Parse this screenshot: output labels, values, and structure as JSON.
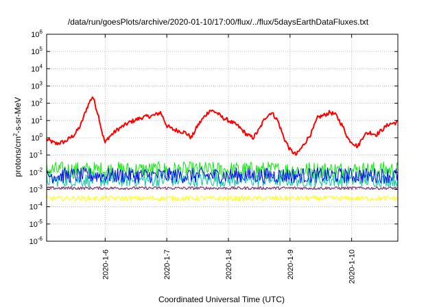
{
  "chart_data": {
    "type": "line",
    "title": "/data/run/goesPlots/archive/2020-01-10/17:00/flux/../flux/5daysEarthDataFluxes.txt",
    "xlabel": "Coordinated Universal Time (UTC)",
    "ylabel": {
      "prefix": "protons/cm",
      "sup": "2",
      "suffix": "-s-sr-MeV"
    },
    "y_scale": "log",
    "ylim_exponents": [
      -6,
      6
    ],
    "y_tick_exponents": [
      -6,
      -5,
      -4,
      -3,
      -2,
      -1,
      0,
      1,
      2,
      3,
      4,
      5,
      6
    ],
    "y_tick_base": "10",
    "xlim_days": [
      5.05,
      10.75
    ],
    "x_ticks": [
      {
        "label": "2020-1-6",
        "day": 6
      },
      {
        "label": "2020-1-7",
        "day": 7
      },
      {
        "label": "2020-1-8",
        "day": 8
      },
      {
        "label": "2020-1-9",
        "day": 9
      },
      {
        "label": "2020-1-10",
        "day": 10
      }
    ],
    "grid": true,
    "series": [
      {
        "color": "#ff0000",
        "lw": 2.0,
        "noise": 0.12,
        "points": [
          [
            5.05,
            0.8
          ],
          [
            5.2,
            0.45
          ],
          [
            5.35,
            0.6
          ],
          [
            5.5,
            1.5
          ],
          [
            5.6,
            5
          ],
          [
            5.7,
            50
          ],
          [
            5.76,
            150
          ],
          [
            5.8,
            250
          ],
          [
            5.85,
            60
          ],
          [
            5.9,
            15
          ],
          [
            5.95,
            2
          ],
          [
            6.0,
            0.5
          ],
          [
            6.05,
            1.0
          ],
          [
            6.2,
            3
          ],
          [
            6.4,
            8
          ],
          [
            6.6,
            15
          ],
          [
            6.8,
            20
          ],
          [
            6.9,
            30
          ],
          [
            7.0,
            5
          ],
          [
            7.1,
            3
          ],
          [
            7.2,
            2.5
          ],
          [
            7.3,
            2
          ],
          [
            7.4,
            1.0
          ],
          [
            7.5,
            5
          ],
          [
            7.6,
            15
          ],
          [
            7.7,
            40
          ],
          [
            7.8,
            30
          ],
          [
            7.9,
            15
          ],
          [
            8.0,
            10
          ],
          [
            8.15,
            5
          ],
          [
            8.3,
            1.5
          ],
          [
            8.4,
            1.0
          ],
          [
            8.5,
            3
          ],
          [
            8.6,
            15
          ],
          [
            8.7,
            30
          ],
          [
            8.8,
            10
          ],
          [
            8.9,
            1.0
          ],
          [
            9.0,
            0.2
          ],
          [
            9.1,
            0.1
          ],
          [
            9.2,
            0.3
          ],
          [
            9.35,
            2
          ],
          [
            9.45,
            15
          ],
          [
            9.55,
            20
          ],
          [
            9.65,
            30
          ],
          [
            9.75,
            20
          ],
          [
            9.85,
            5
          ],
          [
            9.95,
            0.8
          ],
          [
            10.1,
            0.3
          ],
          [
            10.2,
            1.5
          ],
          [
            10.3,
            2
          ],
          [
            10.4,
            1.5
          ],
          [
            10.5,
            3
          ],
          [
            10.6,
            6
          ],
          [
            10.75,
            8
          ]
        ]
      },
      {
        "color": "#00ee00",
        "lw": 1.0,
        "noise": 0.5,
        "points": [
          [
            5.05,
            0.013
          ],
          [
            10.75,
            0.013
          ]
        ]
      },
      {
        "color": "#00c8a0",
        "lw": 1.0,
        "noise": 0.4,
        "points": [
          [
            5.05,
            0.0035
          ],
          [
            10.75,
            0.0035
          ]
        ]
      },
      {
        "color": "#0000ff",
        "lw": 1.0,
        "noise": 0.45,
        "points": [
          [
            5.05,
            0.0065
          ],
          [
            10.75,
            0.0065
          ]
        ]
      },
      {
        "color": "#8b4a7a",
        "lw": 1.5,
        "noise": 0.08,
        "points": [
          [
            5.05,
            0.0012
          ],
          [
            10.75,
            0.0012
          ]
        ]
      },
      {
        "color": "#ffff00",
        "lw": 1.0,
        "noise": 0.15,
        "points": [
          [
            5.05,
            0.0003
          ],
          [
            10.75,
            0.0003
          ]
        ]
      }
    ]
  }
}
